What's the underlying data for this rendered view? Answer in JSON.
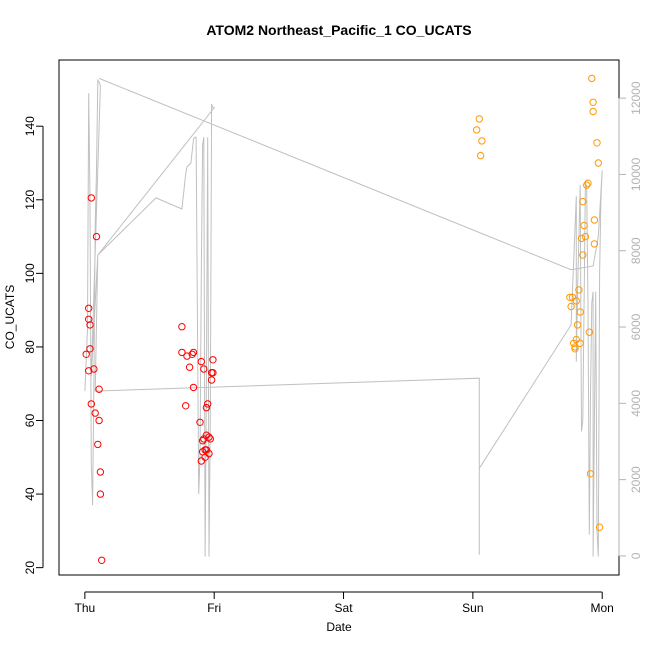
{
  "chart_data": {
    "type": "scatter",
    "title": "ATOM2 Northeast_Pacific_1 CO_UCATS",
    "xlabel": "Date",
    "ylabel": "CO_UCATS",
    "x_ticks": [
      "Thu",
      "Fri",
      "Sat",
      "Sun",
      "Mon"
    ],
    "x_unit": "days since Thu 00:00",
    "xlim": [
      -0.2,
      4.13
    ],
    "ylim": [
      18,
      158
    ],
    "y_ticks": [
      20,
      40,
      60,
      80,
      100,
      120,
      140
    ],
    "y2lim": [
      -500,
      13000
    ],
    "y2_ticks": [
      0,
      2000,
      4000,
      6000,
      8000,
      10000,
      12000
    ],
    "grid": false,
    "colors": {
      "series1": "#ff0000",
      "series2": "#ff9900",
      "altitude": "#c0c0c0"
    },
    "series": [
      {
        "color": "#ff0000",
        "points": [
          [
            0.01,
            78
          ],
          [
            0.03,
            90.5
          ],
          [
            0.03,
            87.5
          ],
          [
            0.03,
            73.5
          ],
          [
            0.04,
            79.5
          ],
          [
            0.04,
            86
          ],
          [
            0.05,
            64.5
          ],
          [
            0.05,
            120.5
          ],
          [
            0.07,
            74
          ],
          [
            0.08,
            62
          ],
          [
            0.09,
            110
          ],
          [
            0.1,
            53.5
          ],
          [
            0.11,
            68.5
          ],
          [
            0.11,
            60
          ],
          [
            0.12,
            46
          ],
          [
            0.12,
            40
          ],
          [
            0.13,
            22
          ],
          [
            0.75,
            85.5
          ],
          [
            0.75,
            78.5
          ],
          [
            0.78,
            64
          ],
          [
            0.79,
            77.5
          ],
          [
            0.81,
            74.5
          ],
          [
            0.83,
            78
          ],
          [
            0.84,
            69
          ],
          [
            0.84,
            78.5
          ],
          [
            0.89,
            59.5
          ],
          [
            0.9,
            49
          ],
          [
            0.9,
            76
          ],
          [
            0.91,
            51.5
          ],
          [
            0.91,
            54.5
          ],
          [
            0.92,
            74
          ],
          [
            0.92,
            55
          ],
          [
            0.93,
            52
          ],
          [
            0.93,
            50
          ],
          [
            0.94,
            52
          ],
          [
            0.94,
            56
          ],
          [
            0.94,
            63.5
          ],
          [
            0.95,
            64.5
          ],
          [
            0.96,
            55.5
          ],
          [
            0.96,
            51
          ],
          [
            0.97,
            55
          ],
          [
            0.98,
            71
          ],
          [
            0.98,
            73
          ],
          [
            0.99,
            73
          ],
          [
            0.99,
            76.5
          ]
        ]
      },
      {
        "color": "#ff9900",
        "points": [
          [
            3.03,
            139
          ],
          [
            3.05,
            142
          ],
          [
            3.06,
            132
          ],
          [
            3.07,
            136
          ],
          [
            3.75,
            93.5
          ],
          [
            3.76,
            91
          ],
          [
            3.77,
            93.5
          ],
          [
            3.78,
            81
          ],
          [
            3.79,
            79.5
          ],
          [
            3.79,
            80
          ],
          [
            3.8,
            82
          ],
          [
            3.8,
            92.5
          ],
          [
            3.81,
            86
          ],
          [
            3.82,
            95.5
          ],
          [
            3.83,
            89.5
          ],
          [
            3.83,
            81
          ],
          [
            3.84,
            109.5
          ],
          [
            3.85,
            105
          ],
          [
            3.85,
            119.5
          ],
          [
            3.86,
            113
          ],
          [
            3.87,
            110
          ],
          [
            3.88,
            124
          ],
          [
            3.89,
            124.5
          ],
          [
            3.9,
            84
          ],
          [
            3.91,
            45.5
          ],
          [
            3.92,
            153
          ],
          [
            3.93,
            146.5
          ],
          [
            3.93,
            144
          ],
          [
            3.94,
            108
          ],
          [
            3.94,
            114.5
          ],
          [
            3.96,
            135.5
          ],
          [
            3.97,
            130
          ],
          [
            3.98,
            31
          ]
        ]
      }
    ],
    "altitude_line": [
      [
        0.0,
        68
      ],
      [
        0.02,
        85
      ],
      [
        0.03,
        149
      ],
      [
        0.04,
        120
      ],
      [
        0.05,
        48
      ],
      [
        0.06,
        37
      ],
      [
        0.07,
        70
      ],
      [
        0.08,
        113
      ],
      [
        0.09,
        128
      ],
      [
        0.1,
        152.5
      ],
      [
        0.11,
        152
      ],
      [
        0.12,
        151
      ],
      [
        0.05,
        72
      ],
      [
        0.1,
        105
      ],
      [
        0.55,
        120.5
      ],
      [
        0.75,
        117.5
      ],
      [
        0.78,
        127
      ],
      [
        0.79,
        129
      ],
      [
        0.82,
        130
      ],
      [
        0.84,
        136.5
      ],
      [
        0.85,
        137
      ],
      [
        0.86,
        137
      ],
      [
        0.88,
        40
      ],
      [
        0.89,
        50
      ],
      [
        0.9,
        100
      ],
      [
        0.91,
        135
      ],
      [
        0.92,
        137
      ],
      [
        0.93,
        23
      ],
      [
        0.94,
        70
      ],
      [
        0.95,
        137
      ],
      [
        0.96,
        23
      ],
      [
        0.97,
        60
      ],
      [
        0.98,
        146
      ],
      [
        0.99,
        145
      ],
      [
        1.0,
        145
      ],
      [
        0.1,
        105
      ],
      [
        0.08,
        68
      ],
      [
        3.05,
        71.5
      ],
      [
        3.05,
        23.5
      ],
      [
        3.05,
        47
      ],
      [
        3.76,
        86
      ],
      [
        3.8,
        121
      ],
      [
        3.8,
        76
      ],
      [
        3.81,
        96
      ],
      [
        3.83,
        124
      ],
      [
        3.84,
        57
      ],
      [
        3.85,
        60
      ],
      [
        3.87,
        125
      ],
      [
        3.88,
        123
      ],
      [
        3.89,
        91
      ],
      [
        3.9,
        29
      ],
      [
        3.91,
        67
      ],
      [
        3.92,
        92
      ],
      [
        3.93,
        95
      ],
      [
        3.93,
        23
      ],
      [
        3.94,
        60
      ],
      [
        3.95,
        95
      ],
      [
        3.96,
        30
      ],
      [
        3.97,
        23
      ],
      [
        3.98,
        100
      ],
      [
        3.99,
        120
      ],
      [
        4.0,
        128
      ],
      [
        3.97,
        110
      ],
      [
        3.93,
        102
      ],
      [
        3.76,
        101
      ],
      [
        0.11,
        153
      ]
    ],
    "right_axis": {
      "ticks": [
        0,
        2000,
        4000,
        6000,
        8000,
        10000,
        12000
      ]
    }
  }
}
